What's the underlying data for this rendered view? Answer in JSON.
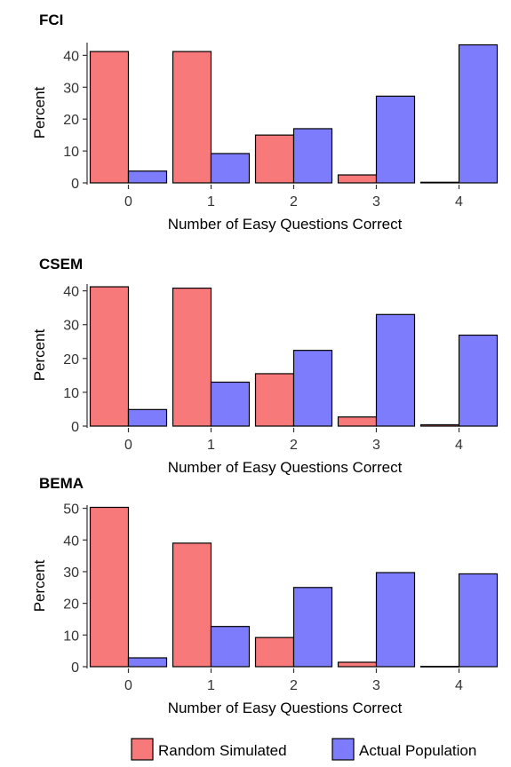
{
  "chart_data": [
    {
      "type": "bar",
      "title": "FCI",
      "xlabel": "Number of Easy Questions Correct",
      "ylabel": "Percent",
      "categories": [
        "0",
        "1",
        "2",
        "3",
        "4"
      ],
      "ylim": [
        0,
        44
      ],
      "yticks": [
        0,
        10,
        20,
        30,
        40
      ],
      "series": [
        {
          "name": "Random Simulated",
          "values": [
            41.2,
            41.2,
            15,
            2.5,
            0.2
          ]
        },
        {
          "name": "Actual Population",
          "values": [
            3.7,
            9.2,
            17,
            27.2,
            43.3
          ]
        }
      ]
    },
    {
      "type": "bar",
      "title": "CSEM",
      "xlabel": "Number of Easy Questions Correct",
      "ylabel": "Percent",
      "categories": [
        "0",
        "1",
        "2",
        "3",
        "4"
      ],
      "ylim": [
        0,
        42
      ],
      "yticks": [
        0,
        10,
        20,
        30,
        40
      ],
      "series": [
        {
          "name": "Random Simulated",
          "values": [
            41.2,
            40.8,
            15.5,
            2.7,
            0.4
          ]
        },
        {
          "name": "Actual Population",
          "values": [
            4.9,
            13,
            22.4,
            33,
            26.9
          ]
        }
      ]
    },
    {
      "type": "bar",
      "title": "BEMA",
      "xlabel": "Number of Easy Questions Correct",
      "ylabel": "Percent",
      "categories": [
        "0",
        "1",
        "2",
        "3",
        "4"
      ],
      "ylim": [
        0,
        51
      ],
      "yticks": [
        0,
        10,
        20,
        30,
        40,
        50
      ],
      "series": [
        {
          "name": "Random Simulated",
          "values": [
            50.3,
            39,
            9.2,
            1.4,
            0.1
          ]
        },
        {
          "name": "Actual Population",
          "values": [
            2.8,
            12.7,
            25,
            29.7,
            29.3
          ]
        }
      ]
    }
  ],
  "legend": {
    "placement": "bottom",
    "items": [
      {
        "label": "Random Simulated",
        "color": "#f8797a"
      },
      {
        "label": "Actual Population",
        "color": "#7d7cfd"
      }
    ]
  },
  "colors": {
    "random": "#f8797a",
    "actual": "#7d7cfd"
  }
}
